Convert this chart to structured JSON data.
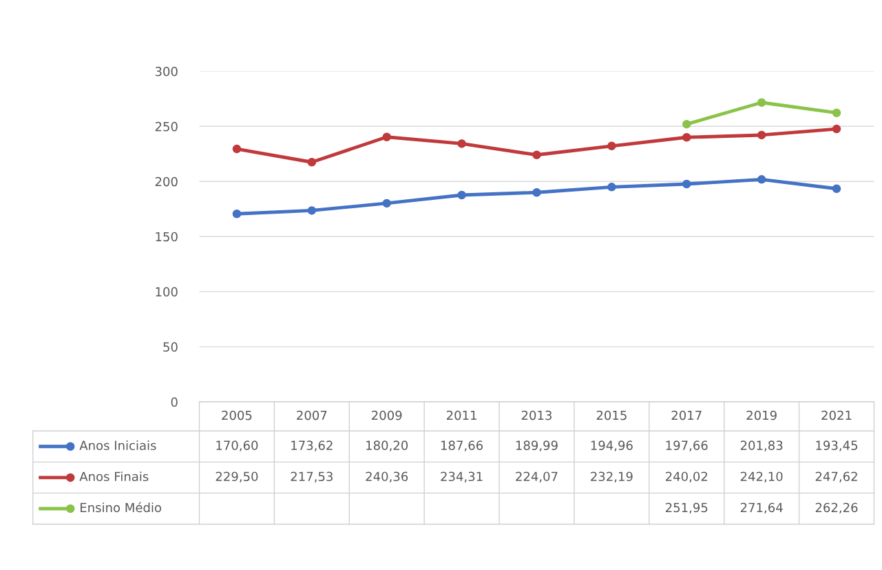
{
  "chart_data": {
    "type": "line",
    "categories": [
      "2005",
      "2007",
      "2009",
      "2011",
      "2013",
      "2015",
      "2017",
      "2019",
      "2021"
    ],
    "series": [
      {
        "name": "Anos Iniciais",
        "color": "#4472c4",
        "values": [
          170.6,
          173.62,
          180.2,
          187.66,
          189.99,
          194.96,
          197.66,
          201.83,
          193.45
        ],
        "value_labels": [
          "170,60",
          "173,62",
          "180,20",
          "187,66",
          "189,99",
          "194,96",
          "197,66",
          "201,83",
          "193,45"
        ]
      },
      {
        "name": "Anos Finais",
        "color": "#c0393b",
        "values": [
          229.5,
          217.53,
          240.36,
          234.31,
          224.07,
          232.19,
          240.02,
          242.1,
          247.62
        ],
        "value_labels": [
          "229,50",
          "217,53",
          "240,36",
          "234,31",
          "224,07",
          "232,19",
          "240,02",
          "242,10",
          "247,62"
        ]
      },
      {
        "name": "Ensino Médio",
        "color": "#8bc34a",
        "values": [
          null,
          null,
          null,
          null,
          null,
          null,
          251.95,
          271.64,
          262.26
        ],
        "value_labels": [
          null,
          null,
          null,
          null,
          null,
          null,
          "251,95",
          "271,64",
          "262,26"
        ]
      }
    ],
    "ylim": [
      0,
      300
    ],
    "yticks": [
      0,
      50,
      100,
      150,
      200,
      250,
      300
    ],
    "grid": "y",
    "legend": "bottom",
    "marker": "circle",
    "line_style": "solid"
  }
}
